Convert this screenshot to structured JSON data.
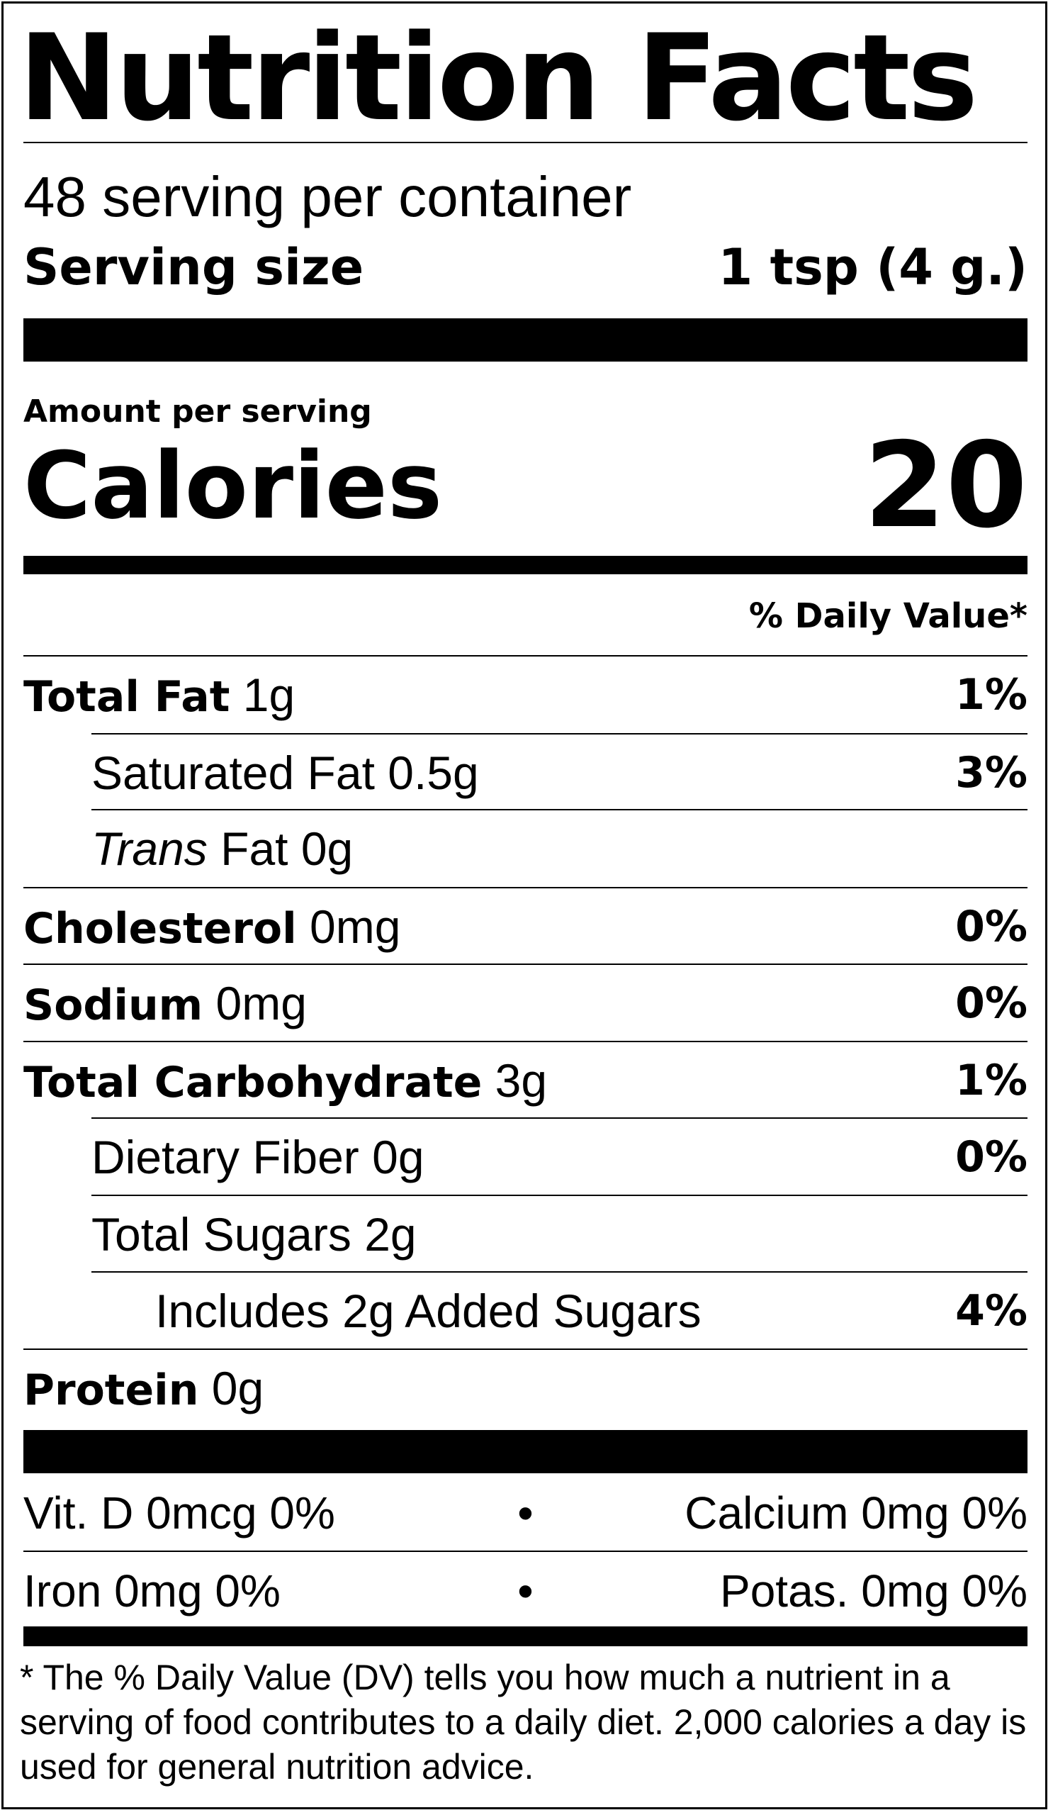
{
  "title": "Nutrition Facts",
  "servings_per_container": "48 serving per container",
  "serving_size": {
    "label": "Serving size",
    "value": "1 tsp (4 g.)"
  },
  "amount_per_serving": "Amount per serving",
  "calories": {
    "label": "Calories",
    "value": "20"
  },
  "daily_value_header": "% Daily Value*",
  "nutrients": [
    {
      "name": "Total Fat",
      "amount": "1g",
      "dv": "1%"
    },
    {
      "name": "Saturated Fat",
      "amount": "0.5g",
      "dv": "3%"
    },
    {
      "name": "Trans",
      "amount": "Fat 0g",
      "dv": ""
    },
    {
      "name": "Cholesterol",
      "amount": "0mg",
      "dv": "0%"
    },
    {
      "name": "Sodium",
      "amount": "0mg",
      "dv": "0%"
    },
    {
      "name": "Total Carbohydrate",
      "amount": "3g",
      "dv": "1%"
    },
    {
      "name": "Dietary Fiber",
      "amount": "0g",
      "dv": "0%"
    },
    {
      "name": "Total Sugars",
      "amount": "2g",
      "dv": ""
    },
    {
      "name": "Includes 2g Added Sugars",
      "amount": "",
      "dv": "4%"
    },
    {
      "name": "Protein",
      "amount": "0g",
      "dv": ""
    }
  ],
  "vitamins": [
    {
      "left": "Vit. D 0mcg 0%",
      "sep": "•",
      "right": "Calcium 0mg 0%"
    },
    {
      "left": "Iron 0mg 0%",
      "sep": "•",
      "right": "Potas. 0mg 0%"
    }
  ],
  "footnote": "* The % Daily Value (DV) tells you how much a nutrient in a serving of food contributes to a daily diet. 2,000 calories a day is used for general nutrition advice."
}
